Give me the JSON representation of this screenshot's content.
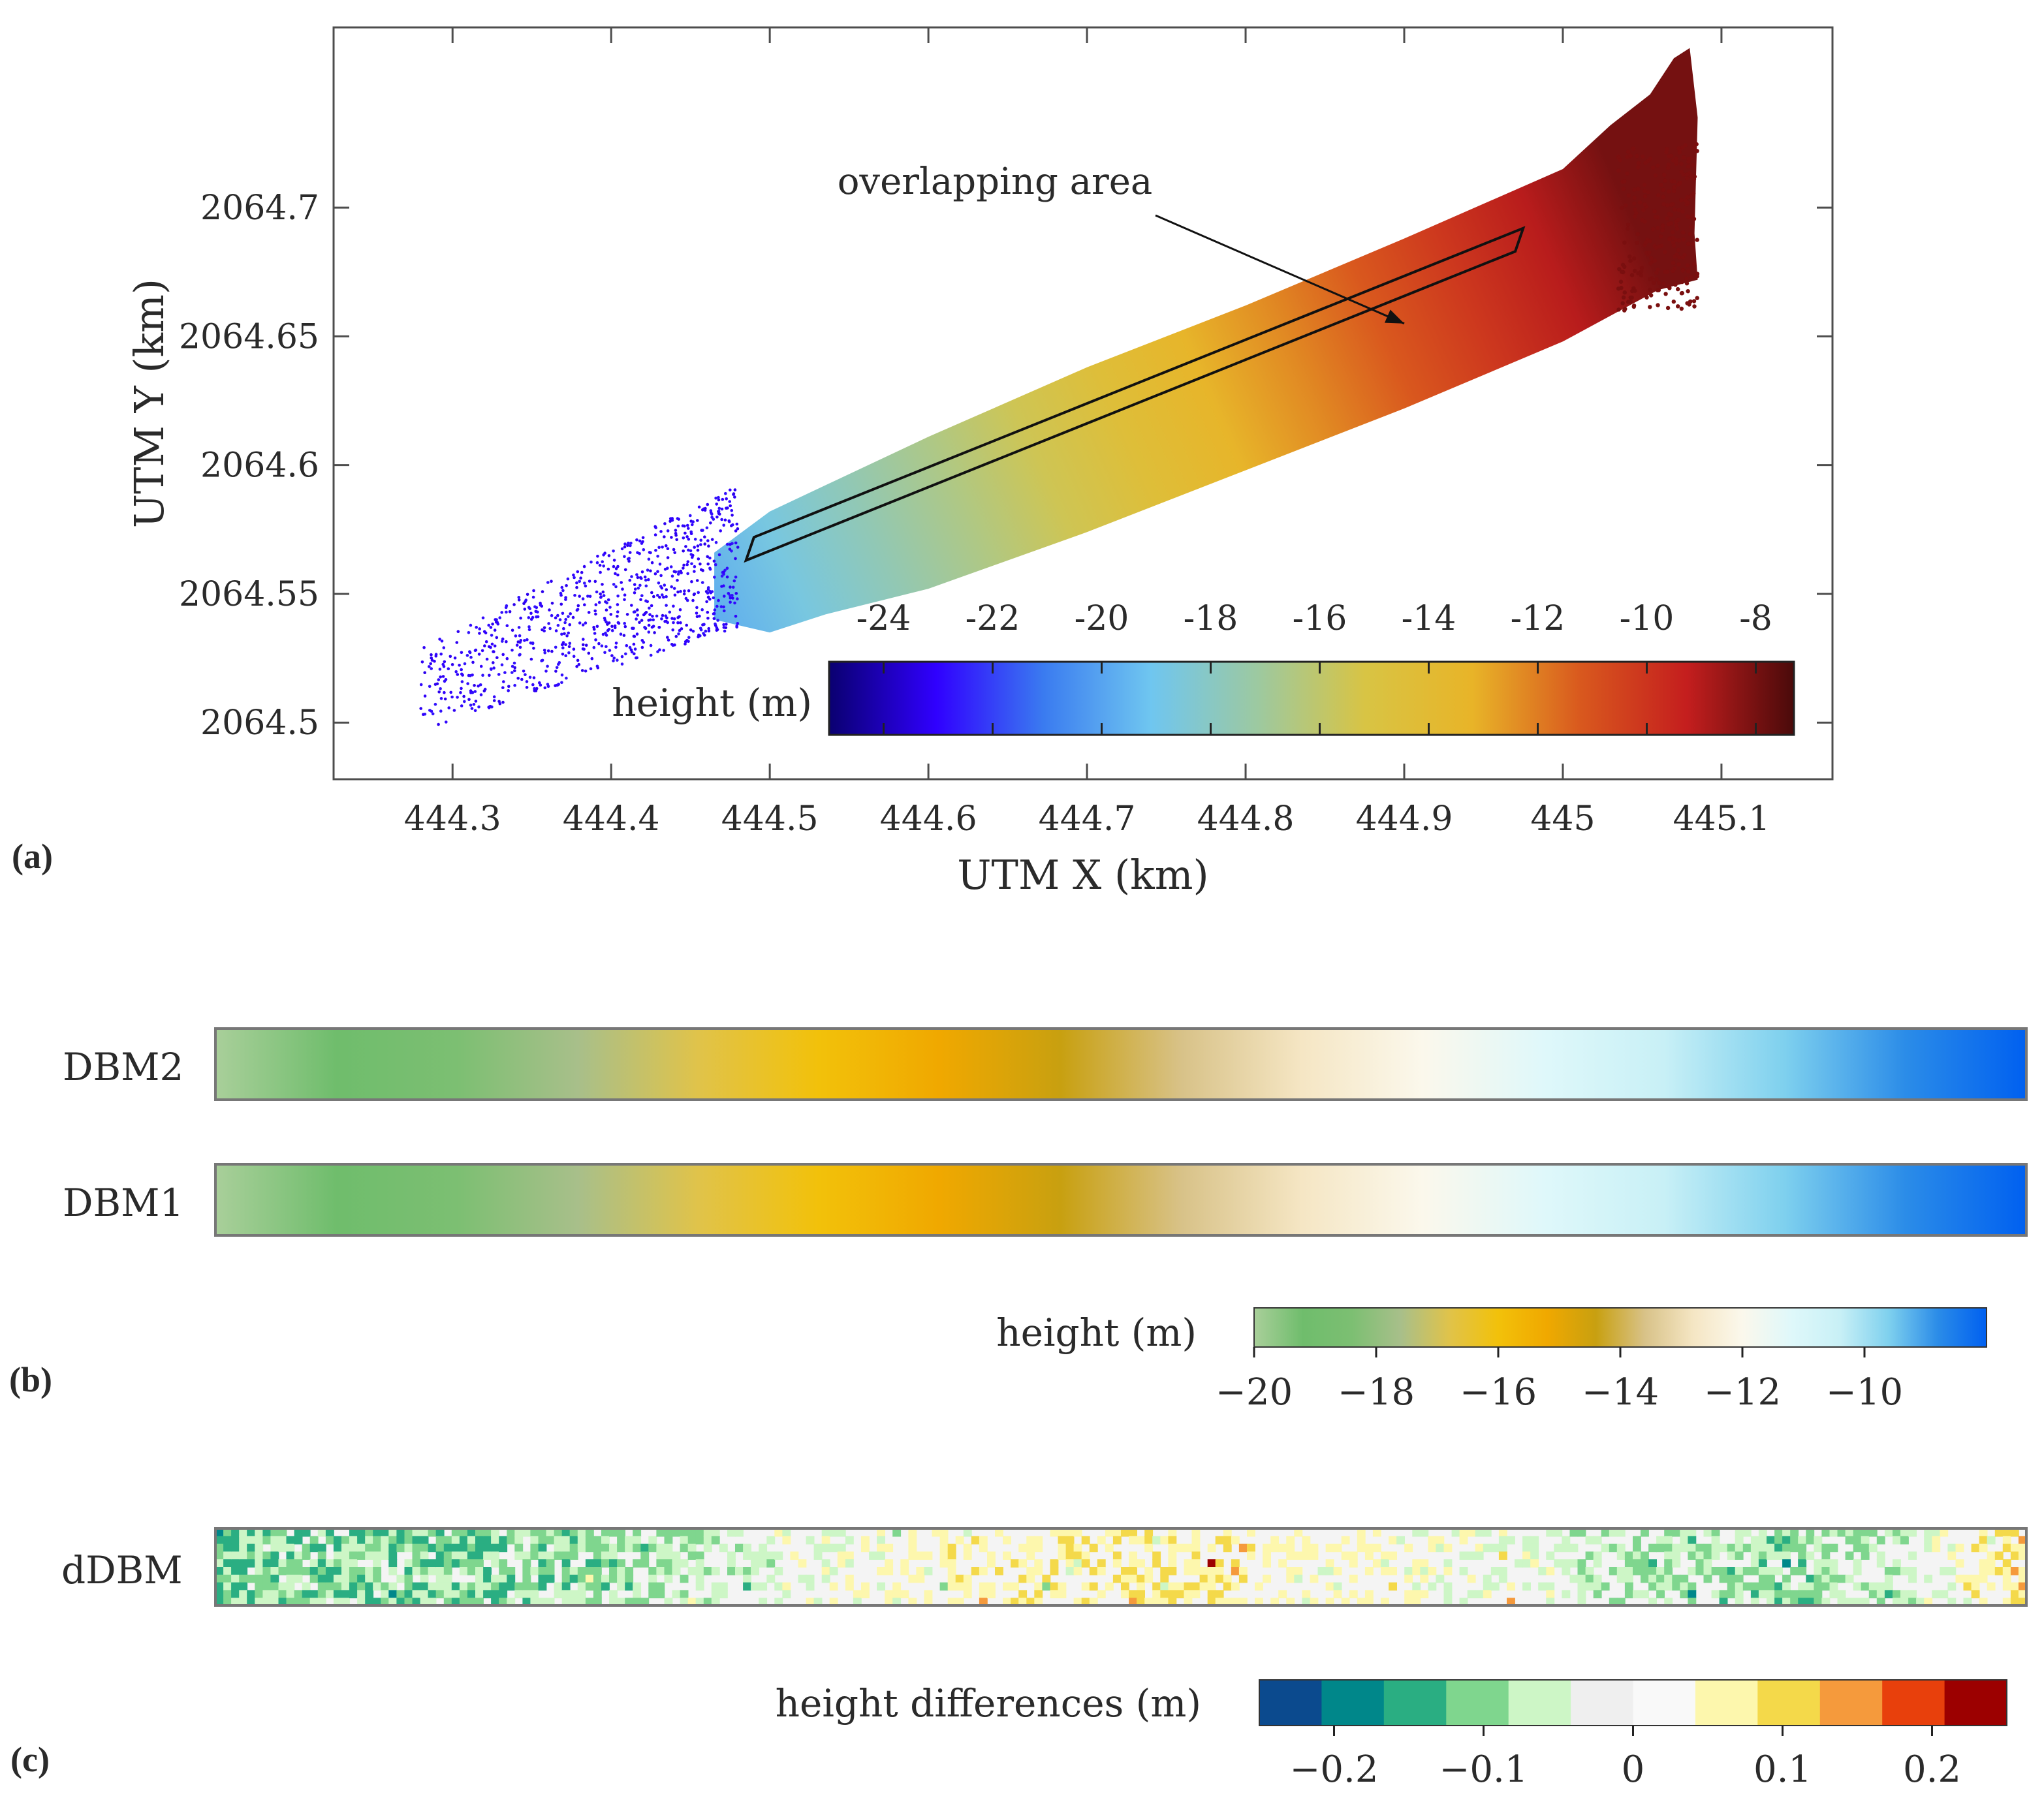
{
  "panel_labels": {
    "a": "(a)",
    "b": "(b)",
    "c": "(c)"
  },
  "chart_data": [
    {
      "type": "scatter",
      "panel": "(a)",
      "xlabel": "UTM X (km)",
      "ylabel": "UTM Y (km)",
      "xlim": [
        444.225,
        445.17
      ],
      "ylim": [
        2064.478,
        2064.77
      ],
      "x_ticks": [
        444.3,
        444.4,
        444.5,
        444.6,
        444.7,
        444.8,
        444.9,
        445,
        445.1
      ],
      "x_tick_labels": [
        "444.3",
        "444.4",
        "444.5",
        "444.6",
        "444.7",
        "444.8",
        "444.9",
        "445",
        "445.1"
      ],
      "y_ticks": [
        2064.5,
        2064.55,
        2064.6,
        2064.65,
        2064.7
      ],
      "y_tick_labels": [
        "2064.5",
        "2064.55",
        "2064.6",
        "2064.65",
        "2064.7"
      ],
      "swath": {
        "start": {
          "x": 444.29,
          "y": 2064.515,
          "height": -23
        },
        "end": {
          "x": 445.03,
          "y": 2064.715,
          "height": -8
        }
      },
      "overlap_box_corners": [
        [
          444.49,
          2064.572
        ],
        [
          444.975,
          2064.692
        ],
        [
          444.97,
          2064.683
        ],
        [
          444.485,
          2064.563
        ]
      ],
      "annotation": {
        "text": "overlapping area",
        "target": [
          444.9,
          2064.655
        ]
      },
      "colorbar": {
        "label": "height (m)",
        "range": [
          -25,
          -7.3
        ],
        "ticks": [
          -24,
          -22,
          -20,
          -18,
          -16,
          -14,
          -12,
          -10,
          -8
        ],
        "tick_labels": [
          "-24",
          "-22",
          "-20",
          "-18",
          "-16",
          "-14",
          "-12",
          "-10",
          "-8"
        ],
        "colormap": [
          "#0a0070",
          "#3000ff",
          "#3a7bf0",
          "#6fc6f0",
          "#9dc9a0",
          "#d8c444",
          "#e8b428",
          "#d9591e",
          "#c41e1e",
          "#4a0a0a"
        ]
      }
    },
    {
      "type": "heatmap",
      "panel": "(b)",
      "rows": [
        "DBM2",
        "DBM1"
      ],
      "profile_x_fraction": [
        0,
        0.05,
        0.12,
        0.18,
        0.24,
        0.29,
        0.34,
        0.4,
        0.45,
        0.5,
        0.56,
        0.61,
        0.66,
        0.72,
        0.78,
        0.84,
        0.9,
        0.95,
        1
      ],
      "profile_heights": [
        -19.4,
        -19.0,
        -18.5,
        -18.3,
        -17.4,
        -16.6,
        -16.0,
        -15.4,
        -14.9,
        -14.2,
        -13.6,
        -13.0,
        -12.3,
        -11.8,
        -11.2,
        -10.8,
        -10.1,
        -9.4,
        -8.6
      ],
      "colorbar": {
        "label": "height (m)",
        "range": [
          -20,
          -8
        ],
        "ticks": [
          -20,
          -18,
          -16,
          -14,
          -12,
          -10
        ],
        "tick_labels": [
          "−20",
          "−18",
          "−16",
          "−14",
          "−12",
          "−10"
        ],
        "colormap": [
          "#a9cf9a",
          "#6fbd6c",
          "#7cbf72",
          "#a8bf8a",
          "#e0c34a",
          "#f2c10a",
          "#f0a800",
          "#c8a010",
          "#d8c288",
          "#f5e6c4",
          "#fbf8ec",
          "#dff8fa",
          "#c8f0f6",
          "#7ed0ee",
          "#2b8ce8",
          "#0060f0"
        ]
      }
    },
    {
      "type": "heatmap",
      "panel": "(c)",
      "rows": [
        "dDBM"
      ],
      "colorbar": {
        "label": "height differences (m)",
        "range": [
          -0.25,
          0.25
        ],
        "ticks": [
          -0.2,
          -0.1,
          0,
          0.1,
          0.2
        ],
        "tick_labels": [
          "−0.2",
          "−0.1",
          "0",
          "0.1",
          "0.2"
        ],
        "bins": [
          -0.25,
          -0.2,
          -0.15,
          -0.1,
          -0.05,
          0,
          0.05,
          0.1,
          0.15,
          0.2,
          0.25
        ],
        "colormap": [
          "#0b4a8e",
          "#00878a",
          "#2aae82",
          "#7fd68e",
          "#cdf6c6",
          "#efefef",
          "#f9f9f9",
          "#fdf7ad",
          "#f4d94a",
          "#f59a3c",
          "#e8400c",
          "#9c0000"
        ]
      },
      "mean_difference_profile": {
        "x_fraction": [
          0,
          0.05,
          0.1,
          0.15,
          0.2,
          0.25,
          0.3,
          0.35,
          0.4,
          0.45,
          0.5,
          0.55,
          0.6,
          0.65,
          0.7,
          0.75,
          0.8,
          0.85,
          0.9,
          0.95,
          1
        ],
        "value": [
          -0.08,
          -0.06,
          -0.05,
          -0.05,
          -0.04,
          -0.02,
          0.02,
          0.05,
          0.08,
          0.09,
          0.12,
          0.1,
          0.07,
          0.06,
          0.05,
          0.02,
          -0.02,
          -0.04,
          -0.02,
          0.04,
          0.14
        ]
      }
    }
  ]
}
